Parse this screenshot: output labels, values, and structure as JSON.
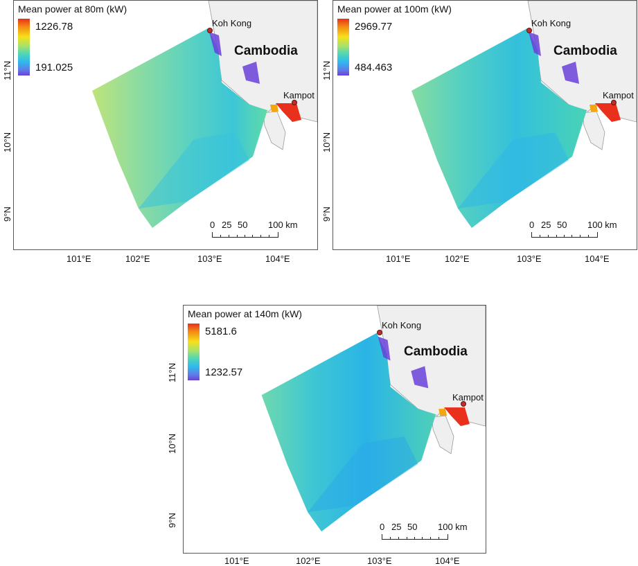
{
  "panels": [
    {
      "legend_title": "Mean power at 80m (kW)",
      "legend_max": "1226.78",
      "legend_min": "191.025"
    },
    {
      "legend_title": "Mean power at 100m (kW)",
      "legend_max": "2969.77",
      "legend_min": "484.463"
    },
    {
      "legend_title": "Mean power at 140m (kW)",
      "legend_max": "5181.6",
      "legend_min": "1232.57"
    }
  ],
  "map": {
    "country_label": "Cambodia",
    "city_north": "Koh Kong",
    "city_east": "Kampot",
    "lon_labels": [
      "101°E",
      "102°E",
      "103°E",
      "104°E"
    ],
    "lat_labels": [
      "11°N",
      "10°N",
      "9°N"
    ],
    "scale_labels": [
      "0",
      "25",
      "50",
      "100 km"
    ]
  },
  "colors": {
    "land": "#efefef",
    "coast": "#8a8a8a",
    "field_low": "#2fb9ee",
    "field_mid": "#4fd6b8",
    "field_high_edge": "#b7e36a",
    "hotspot": "#e8301c",
    "deep": "#6a3fd9"
  }
}
